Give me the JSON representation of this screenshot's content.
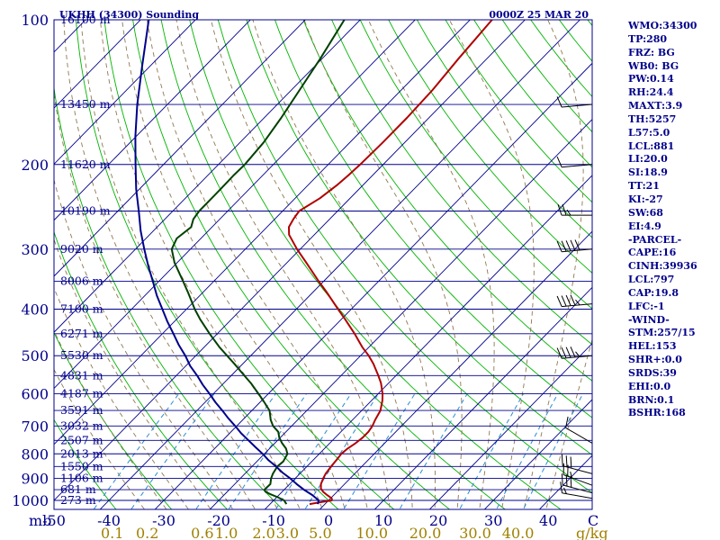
{
  "chart_data": {
    "type": "line",
    "title": "UKHH (34300) Sounding",
    "timestamp": "0000Z 25 MAR 20",
    "pressure_ticks": [
      1000,
      900,
      800,
      700,
      600,
      500,
      400,
      300,
      200,
      100
    ],
    "pressure_axis_label": "mb",
    "temp_ticks": [
      -50,
      -40,
      -30,
      -20,
      -10,
      0,
      10,
      20,
      30,
      40
    ],
    "temp_axis_extra_label": "C",
    "temp_range_at_1000": [
      -50,
      48
    ],
    "mixing_ratio_ticks": [
      {
        "label": "0.1",
        "temp": -39.4
      },
      {
        "label": "0.2",
        "temp": -33.0
      },
      {
        "label": "0.6",
        "temp": -23.0
      },
      {
        "label": "1.0",
        "temp": -18.6
      },
      {
        "label": "2.0",
        "temp": -11.8
      },
      {
        "label": "3.0",
        "temp": -7.5
      },
      {
        "label": "5.0",
        "temp": -1.5
      },
      {
        "label": "10.0",
        "temp": 7.9
      },
      {
        "label": "20.0",
        "temp": 17.6
      },
      {
        "label": "30.0",
        "temp": 26.7
      },
      {
        "label": "40.0",
        "temp": 34.5
      }
    ],
    "mixing_ratio_unit": "g/kg",
    "height_labels": [
      {
        "p": 100,
        "label": "16100 m"
      },
      {
        "p": 150,
        "label": "13450 m"
      },
      {
        "p": 200,
        "label": "11620 m"
      },
      {
        "p": 250,
        "label": "10190 m"
      },
      {
        "p": 300,
        "label": "9020 m"
      },
      {
        "p": 350,
        "label": "8006 m"
      },
      {
        "p": 400,
        "label": "7100 m"
      },
      {
        "p": 450,
        "label": "6271 m"
      },
      {
        "p": 500,
        "label": "5530 m"
      },
      {
        "p": 550,
        "label": "4831 m"
      },
      {
        "p": 600,
        "label": "4187 m"
      },
      {
        "p": 650,
        "label": "3591 m"
      },
      {
        "p": 700,
        "label": "3032 m"
      },
      {
        "p": 750,
        "label": "2507 m"
      },
      {
        "p": 800,
        "label": "2013 m"
      },
      {
        "p": 850,
        "label": "1550 m"
      },
      {
        "p": 900,
        "label": "1106 m"
      },
      {
        "p": 950,
        "label": "681 m"
      },
      {
        "p": 1000,
        "label": "273 m"
      }
    ],
    "series": [
      {
        "id": "temperature",
        "color": "#b00000",
        "points": [
          [
            1018,
            -2.8
          ],
          [
            1010,
            -1.4
          ],
          [
            1000,
            0.6
          ],
          [
            990,
            0.2
          ],
          [
            975,
            -1.2
          ],
          [
            960,
            -2.5
          ],
          [
            945,
            -3.5
          ],
          [
            925,
            -4.3
          ],
          [
            900,
            -4.9
          ],
          [
            880,
            -5.3
          ],
          [
            850,
            -5.6
          ],
          [
            820,
            -5.8
          ],
          [
            800,
            -6.0
          ],
          [
            780,
            -5.8
          ],
          [
            760,
            -5.3
          ],
          [
            740,
            -5.0
          ],
          [
            720,
            -5.0
          ],
          [
            700,
            -5.3
          ],
          [
            680,
            -5.9
          ],
          [
            650,
            -6.6
          ],
          [
            620,
            -8.0
          ],
          [
            600,
            -9.2
          ],
          [
            570,
            -11.4
          ],
          [
            550,
            -13.2
          ],
          [
            520,
            -16.2
          ],
          [
            500,
            -18.5
          ],
          [
            480,
            -21.2
          ],
          [
            450,
            -25.0
          ],
          [
            420,
            -29.3
          ],
          [
            400,
            -32.4
          ],
          [
            370,
            -37.3
          ],
          [
            350,
            -40.9
          ],
          [
            320,
            -46.5
          ],
          [
            300,
            -50.6
          ],
          [
            280,
            -54.6
          ],
          [
            270,
            -56.0
          ],
          [
            260,
            -56.6
          ],
          [
            250,
            -57.0
          ],
          [
            235,
            -55.5
          ],
          [
            220,
            -54.7
          ],
          [
            210,
            -54.4
          ],
          [
            200,
            -54.2
          ],
          [
            180,
            -54.0
          ],
          [
            160,
            -54.0
          ],
          [
            140,
            -54.3
          ],
          [
            120,
            -55.2
          ],
          [
            100,
            -56.0
          ],
          [
            85,
            -56.5
          ]
        ]
      },
      {
        "id": "dewpoint",
        "color": "#004000",
        "points": [
          [
            1018,
            -7.0
          ],
          [
            1010,
            -7.5
          ],
          [
            1000,
            -8.1
          ],
          [
            985,
            -9.8
          ],
          [
            970,
            -11.8
          ],
          [
            960,
            -13.0
          ],
          [
            950,
            -13.6
          ],
          [
            925,
            -13.5
          ],
          [
            900,
            -14.4
          ],
          [
            880,
            -14.9
          ],
          [
            850,
            -15.4
          ],
          [
            830,
            -15.2
          ],
          [
            800,
            -15.8
          ],
          [
            780,
            -17.0
          ],
          [
            760,
            -18.7
          ],
          [
            740,
            -20.2
          ],
          [
            720,
            -21.4
          ],
          [
            700,
            -23.4
          ],
          [
            680,
            -24.9
          ],
          [
            650,
            -26.8
          ],
          [
            620,
            -29.7
          ],
          [
            600,
            -31.8
          ],
          [
            570,
            -35.1
          ],
          [
            550,
            -37.6
          ],
          [
            520,
            -41.5
          ],
          [
            500,
            -44.3
          ],
          [
            480,
            -47.2
          ],
          [
            450,
            -51.4
          ],
          [
            420,
            -55.7
          ],
          [
            400,
            -58.5
          ],
          [
            370,
            -62.6
          ],
          [
            350,
            -65.6
          ],
          [
            320,
            -70.5
          ],
          [
            300,
            -73.4
          ],
          [
            285,
            -74.4
          ],
          [
            270,
            -73.8
          ],
          [
            260,
            -74.8
          ],
          [
            250,
            -75.2
          ],
          [
            230,
            -75.2
          ],
          [
            210,
            -75.3
          ],
          [
            200,
            -75.2
          ],
          [
            180,
            -75.7
          ],
          [
            160,
            -76.9
          ],
          [
            140,
            -78.5
          ],
          [
            120,
            -80.4
          ],
          [
            100,
            -82.9
          ],
          [
            85,
            -84.8
          ]
        ]
      },
      {
        "id": "parcel",
        "color": "#00008b",
        "points": [
          [
            1018,
            -1.3
          ],
          [
            1000,
            -1.8
          ],
          [
            975,
            -3.9
          ],
          [
            950,
            -6.4
          ],
          [
            925,
            -8.7
          ],
          [
            900,
            -10.9
          ],
          [
            875,
            -13.4
          ],
          [
            850,
            -15.6
          ],
          [
            825,
            -18.1
          ],
          [
            800,
            -20.3
          ],
          [
            775,
            -22.8
          ],
          [
            750,
            -25.3
          ],
          [
            725,
            -27.9
          ],
          [
            700,
            -30.3
          ],
          [
            675,
            -32.9
          ],
          [
            650,
            -35.4
          ],
          [
            625,
            -38.1
          ],
          [
            600,
            -40.7
          ],
          [
            575,
            -43.5
          ],
          [
            550,
            -46.2
          ],
          [
            525,
            -49.2
          ],
          [
            500,
            -51.9
          ],
          [
            475,
            -55.0
          ],
          [
            450,
            -58.0
          ],
          [
            425,
            -61.2
          ],
          [
            400,
            -64.4
          ],
          [
            375,
            -67.8
          ],
          [
            350,
            -71.1
          ],
          [
            325,
            -74.7
          ],
          [
            300,
            -78.4
          ],
          [
            275,
            -82.3
          ],
          [
            250,
            -86.2
          ],
          [
            225,
            -90.6
          ],
          [
            200,
            -95.1
          ],
          [
            175,
            -100.1
          ],
          [
            150,
            -105.5
          ],
          [
            125,
            -111.4
          ],
          [
            100,
            -118.5
          ],
          [
            89,
            -122.0
          ]
        ]
      }
    ],
    "wind_barbs": [
      {
        "p": 990,
        "dir": 280,
        "spd": 15
      },
      {
        "p": 965,
        "dir": 285,
        "spd": 30
      },
      {
        "p": 930,
        "dir": 290,
        "spd": 25
      },
      {
        "p": 880,
        "dir": 285,
        "spd": 30
      },
      {
        "p": 760,
        "dir": 300,
        "spd": 10
      },
      {
        "p": 500,
        "dir": 265,
        "spd": 45
      },
      {
        "p": 390,
        "dir": 265,
        "spd": 45
      },
      {
        "p": 300,
        "dir": 265,
        "spd": 50
      },
      {
        "p": 255,
        "dir": 270,
        "spd": 25
      },
      {
        "p": 200,
        "dir": 265,
        "spd": 10
      },
      {
        "p": 150,
        "dir": 265,
        "spd": 10
      }
    ],
    "parameters": [
      "WMO:34300",
      "TP:280",
      "FRZ: BG",
      "WB0: BG",
      "PW:0.14",
      "RH:24.4",
      "MAXT:3.9",
      "TH:5257",
      "L57:5.0",
      "LCL:881",
      "LI:20.0",
      "SI:18.9",
      "TT:21",
      "KI:-27",
      "SW:68",
      "EI:4.9",
      "-PARCEL-",
      "CAPE:16",
      "CINH:39936",
      "LCL:797",
      "CAP:19.8",
      "LFC:-1",
      "-WIND-",
      "STM:257/15",
      "HEL:153",
      "SHR+:0.0",
      "SRDS:39",
      "EHI:0.0",
      "BRN:0.1",
      "BSHR:168"
    ],
    "colors": {
      "frame": "#00008b",
      "isobar": "#00008b",
      "isotherm": "#00008b",
      "dry_adiabat": "#00b400",
      "moist_adiabat": "#907850",
      "mixing_ratio": "#2a8cd2",
      "mixing_ratio_label": "#a08000",
      "wind_barb": "#000000"
    }
  }
}
